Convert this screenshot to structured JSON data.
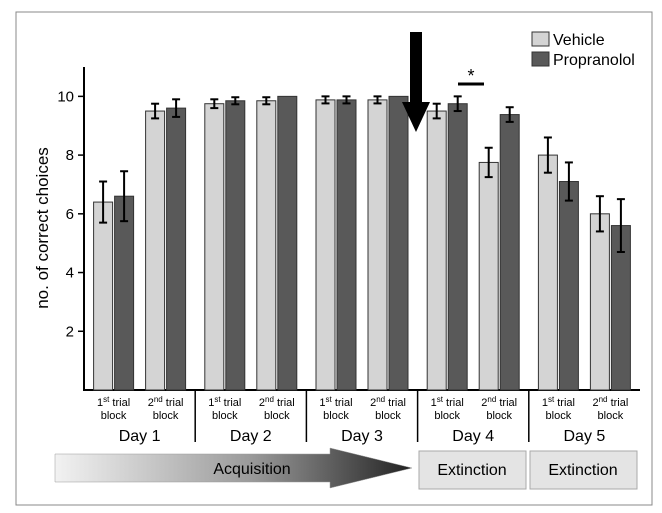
{
  "chart_data": {
    "type": "bar",
    "ylabel": "no. of correct choices",
    "ylim": [
      0,
      11
    ],
    "yticks": [
      2,
      4,
      6,
      8,
      10
    ],
    "groups": [
      {
        "day": "Day 1",
        "blocks": [
          {
            "label_sup": "st",
            "values": [
              6.4,
              6.6
            ],
            "errors": [
              0.7,
              0.85
            ]
          },
          {
            "label_sup": "nd",
            "values": [
              9.5,
              9.6
            ],
            "errors": [
              0.25,
              0.3
            ]
          }
        ]
      },
      {
        "day": "Day 2",
        "blocks": [
          {
            "label_sup": "st",
            "values": [
              9.75,
              9.85
            ],
            "errors": [
              0.15,
              0.12
            ]
          },
          {
            "label_sup": "nd",
            "values": [
              9.85,
              10.0
            ],
            "errors": [
              0.12,
              0
            ]
          }
        ]
      },
      {
        "day": "Day 3",
        "blocks": [
          {
            "label_sup": "st",
            "values": [
              9.88,
              9.88
            ],
            "errors": [
              0.12,
              0.12
            ]
          },
          {
            "label_sup": "nd",
            "values": [
              9.88,
              10.0
            ],
            "errors": [
              0.12,
              0
            ]
          }
        ]
      },
      {
        "day": "Day 4",
        "blocks": [
          {
            "label_sup": "st",
            "values": [
              9.5,
              9.75
            ],
            "errors": [
              0.25,
              0.25
            ]
          },
          {
            "label_sup": "nd",
            "values": [
              7.75,
              9.38
            ],
            "errors": [
              0.5,
              0.25
            ]
          }
        ]
      },
      {
        "day": "Day 5",
        "blocks": [
          {
            "label_sup": "st",
            "values": [
              8.0,
              7.1
            ],
            "errors": [
              0.6,
              0.65
            ]
          },
          {
            "label_sup": "nd",
            "values": [
              6.0,
              5.6
            ],
            "errors": [
              0.6,
              0.9
            ]
          }
        ]
      }
    ],
    "series": [
      {
        "name": "Vehicle",
        "color": "#d4d4d4"
      },
      {
        "name": "Propranolol",
        "color": "#595959"
      }
    ],
    "block_label_prefix_1": "1",
    "block_label_prefix_2": "2",
    "block_label_rest_line1": " trial",
    "block_label_line2": "block",
    "significance": {
      "symbol": "*"
    },
    "legend_position": "top-right"
  },
  "phases": {
    "acquisition": "Acquisition",
    "extinction_1": "Extinction",
    "extinction_2": "Extinction"
  }
}
